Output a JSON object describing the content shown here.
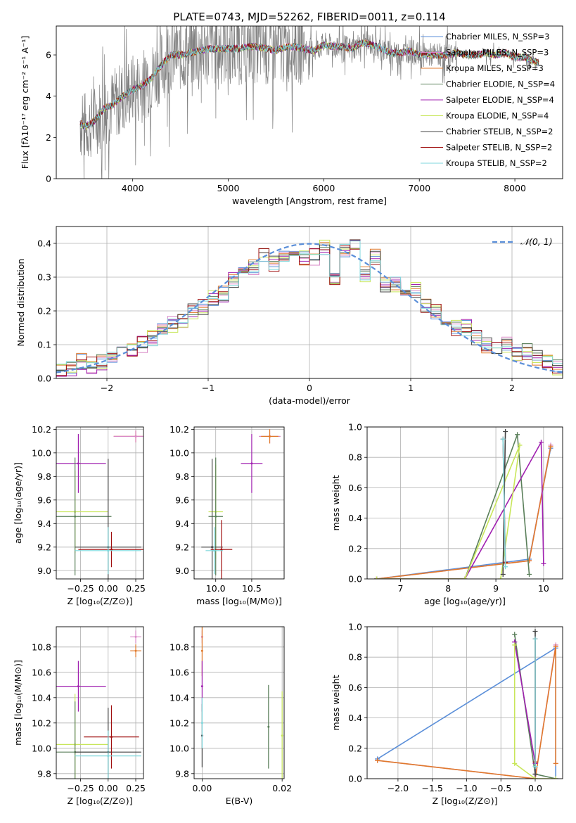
{
  "figure": {
    "title": "PLATE=0743, MJD=52262, FIBERID=0011, z=0.114",
    "colors": {
      "chabrier_miles": "#5b8fd9",
      "salpeter_miles": "#d98ac7",
      "kroupa_miles": "#e07a2c",
      "chabrier_elodie": "#5a7f5a",
      "salpeter_elodie": "#a020b0",
      "kroupa_elodie": "#c8e65a",
      "chabrier_stelib": "#444444",
      "salpeter_stelib": "#a01010",
      "kroupa_stelib": "#7fd7dc",
      "raw_spectrum": "#808080",
      "gaussian": "#5b8fd9"
    }
  },
  "chart_data": [
    {
      "id": "spectrum",
      "type": "line",
      "xlabel": "wavelength [Angstrom, rest frame]",
      "ylabel": "Flux [fλ10⁻¹⁷ erg cm⁻² s⁻¹ A⁻¹]",
      "xlim": [
        3200,
        8500
      ],
      "ylim": [
        0,
        7.4
      ],
      "xticks": [
        4000,
        5000,
        6000,
        7000,
        8000
      ],
      "yticks": [
        0,
        2,
        4,
        6
      ],
      "grid": false,
      "legend_position": "top-right",
      "x": [
        3450,
        3500,
        3600,
        3700,
        3800,
        3900,
        4000,
        4100,
        4200,
        4300,
        4400,
        4500,
        4600,
        4700,
        4800,
        4900,
        5000,
        5100,
        5200,
        5300,
        5400,
        5500,
        5600,
        5700,
        5800,
        5900,
        6000,
        6100,
        6200,
        6300,
        6400,
        6500,
        6600,
        6700,
        6800,
        6900,
        7000,
        7100,
        7200,
        7300,
        7400,
        7500,
        7600,
        7700,
        7800,
        7900,
        8000,
        8100,
        8200,
        8250
      ],
      "y": [
        2.7,
        2.5,
        2.8,
        3.4,
        3.6,
        4.0,
        4.3,
        4.5,
        4.9,
        5.5,
        6.0,
        6.0,
        6.1,
        6.2,
        6.3,
        6.3,
        6.3,
        6.3,
        6.4,
        6.4,
        6.3,
        6.2,
        6.4,
        6.4,
        6.3,
        6.2,
        6.5,
        6.4,
        6.4,
        6.3,
        6.6,
        6.5,
        6.3,
        6.1,
        6.1,
        6.2,
        6.0,
        6.0,
        6.0,
        6.0,
        6.1,
        6.0,
        6.0,
        6.1,
        6.0,
        6.1,
        5.9,
        5.9,
        5.7,
        5.6
      ],
      "series": [
        {
          "name": "Chabrier MILES, N_SSP=3",
          "color_key": "chabrier_miles"
        },
        {
          "name": "Salpeter MILES, N_SSP=3",
          "color_key": "salpeter_miles"
        },
        {
          "name": "Kroupa MILES, N_SSP=3",
          "color_key": "kroupa_miles"
        },
        {
          "name": "Chabrier ELODIE, N_SSP=4",
          "color_key": "chabrier_elodie"
        },
        {
          "name": "Salpeter ELODIE, N_SSP=4",
          "color_key": "salpeter_elodie"
        },
        {
          "name": "Kroupa ELODIE, N_SSP=4",
          "color_key": "kroupa_elodie"
        },
        {
          "name": "Chabrier STELIB, N_SSP=2",
          "color_key": "chabrier_stelib"
        },
        {
          "name": "Salpeter STELIB, N_SSP=2",
          "color_key": "salpeter_stelib"
        },
        {
          "name": "Kroupa STELIB, N_SSP=2",
          "color_key": "kroupa_stelib"
        }
      ]
    },
    {
      "id": "residuals",
      "type": "line",
      "xlabel": "(data-model)/error",
      "ylabel": "Normed distribution",
      "xlim": [
        -2.5,
        2.5
      ],
      "ylim": [
        0,
        0.45
      ],
      "xticks": [
        -2,
        -1,
        0,
        1,
        2
      ],
      "yticks": [
        0.0,
        0.1,
        0.2,
        0.3,
        0.4
      ],
      "grid": true,
      "legend_position": "top-right",
      "gaussian_label": "𝒩(0, 1)",
      "bin_edges": [
        -2.5,
        -2.4,
        -2.3,
        -2.2,
        -2.1,
        -2.0,
        -1.9,
        -1.8,
        -1.7,
        -1.6,
        -1.5,
        -1.4,
        -1.3,
        -1.2,
        -1.1,
        -1.0,
        -0.9,
        -0.8,
        -0.7,
        -0.6,
        -0.5,
        -0.4,
        -0.3,
        -0.2,
        -0.1,
        0.0,
        0.1,
        0.2,
        0.3,
        0.4,
        0.5,
        0.6,
        0.7,
        0.8,
        0.9,
        1.0,
        1.1,
        1.2,
        1.3,
        1.4,
        1.5,
        1.6,
        1.7,
        1.8,
        1.9,
        2.0,
        2.1,
        2.2,
        2.3,
        2.4,
        2.5
      ],
      "hist_values": [
        0.03,
        0.03,
        0.05,
        0.04,
        0.05,
        0.06,
        0.07,
        0.09,
        0.1,
        0.12,
        0.14,
        0.16,
        0.17,
        0.2,
        0.21,
        0.24,
        0.25,
        0.29,
        0.31,
        0.33,
        0.36,
        0.34,
        0.36,
        0.37,
        0.36,
        0.36,
        0.39,
        0.3,
        0.38,
        0.4,
        0.31,
        0.36,
        0.28,
        0.28,
        0.27,
        0.26,
        0.22,
        0.2,
        0.17,
        0.15,
        0.15,
        0.12,
        0.1,
        0.09,
        0.1,
        0.07,
        0.08,
        0.06,
        0.05,
        0.03
      ]
    },
    {
      "id": "age-vs-z",
      "type": "scatter",
      "xlabel": "Z [log₁₀(Z/Z⊙)]",
      "ylabel": "age  [log₁₀(age/yr)]",
      "xlim": [
        -0.47,
        0.32
      ],
      "ylim": [
        8.93,
        10.22
      ],
      "xticks": [
        -0.25,
        0.0,
        0.25
      ],
      "xtick_labels": [
        "−0.25",
        "0.00",
        "0.25"
      ],
      "yticks": [
        9.0,
        9.2,
        9.4,
        9.6,
        9.8,
        10.0,
        10.2
      ],
      "grid": true,
      "points": [
        {
          "x": 0.25,
          "y": 10.14,
          "xerr": 0.2,
          "yerr": 0.05,
          "color_key": "kroupa_miles"
        },
        {
          "x": 0.25,
          "y": 10.14,
          "xerr": 0.2,
          "yerr": 0.05,
          "color_key": "salpeter_miles"
        },
        {
          "x": -0.27,
          "y": 9.91,
          "xerr": 0.25,
          "yerr": 0.25,
          "color_key": "salpeter_elodie"
        },
        {
          "x": -0.3,
          "y": 9.5,
          "xerr": 0.3,
          "yerr": 0.35,
          "color_key": "kroupa_elodie"
        },
        {
          "x": -0.3,
          "y": 9.46,
          "xerr": 0.33,
          "yerr": 0.5,
          "color_key": "chabrier_elodie"
        },
        {
          "x": 0.0,
          "y": 9.2,
          "xerr": 0.3,
          "yerr": 0.75,
          "color_key": "chabrier_stelib"
        },
        {
          "x": 0.03,
          "y": 9.18,
          "xerr": 0.3,
          "yerr": 0.15,
          "color_key": "salpeter_stelib"
        },
        {
          "x": 0.0,
          "y": 9.17,
          "xerr": 0.3,
          "yerr": 0.2,
          "color_key": "kroupa_stelib"
        }
      ]
    },
    {
      "id": "age-vs-mass",
      "type": "scatter",
      "xlabel": "mass [log₁₀(M/M⊙)]",
      "ylabel": "",
      "xlim": [
        9.7,
        10.95
      ],
      "ylim": [
        8.93,
        10.22
      ],
      "xticks": [
        10.0,
        10.5
      ],
      "xtick_labels": [
        "10.0",
        "10.5"
      ],
      "yticks": [
        9.0,
        9.2,
        9.4,
        9.6,
        9.8,
        10.0,
        10.2
      ],
      "grid": true,
      "points": [
        {
          "x": 10.75,
          "y": 10.14,
          "xerr": 0.15,
          "yerr": 0.06,
          "color_key": "salpeter_miles"
        },
        {
          "x": 10.75,
          "y": 10.14,
          "xerr": 0.12,
          "yerr": 0.06,
          "color_key": "kroupa_miles"
        },
        {
          "x": 10.5,
          "y": 9.91,
          "xerr": 0.15,
          "yerr": 0.25,
          "color_key": "salpeter_elodie"
        },
        {
          "x": 10.0,
          "y": 9.5,
          "xerr": 0.1,
          "yerr": 0.4,
          "color_key": "kroupa_elodie"
        },
        {
          "x": 10.0,
          "y": 9.46,
          "xerr": 0.1,
          "yerr": 0.5,
          "color_key": "chabrier_elodie"
        },
        {
          "x": 9.95,
          "y": 9.2,
          "xerr": 0.15,
          "yerr": 0.75,
          "color_key": "chabrier_stelib"
        },
        {
          "x": 10.08,
          "y": 9.18,
          "xerr": 0.15,
          "yerr": 0.25,
          "color_key": "salpeter_stelib"
        },
        {
          "x": 9.98,
          "y": 9.17,
          "xerr": 0.12,
          "yerr": 0.2,
          "color_key": "kroupa_stelib"
        }
      ]
    },
    {
      "id": "weight-vs-age",
      "type": "line",
      "xlabel": "age  [log₁₀(age/yr)]",
      "ylabel": "mass weight",
      "xlim": [
        6.3,
        10.4
      ],
      "ylim": [
        0,
        1.0
      ],
      "xticks": [
        7,
        8,
        9,
        10
      ],
      "yticks": [
        0.0,
        0.2,
        0.4,
        0.6,
        0.8,
        1.0
      ],
      "grid": true,
      "series": [
        {
          "color_key": "chabrier_miles",
          "x": [
            6.5,
            9.7,
            10.15
          ],
          "y": [
            0.0,
            0.13,
            0.86
          ]
        },
        {
          "color_key": "salpeter_miles",
          "x": [
            6.5,
            9.7,
            10.15
          ],
          "y": [
            0.0,
            0.12,
            0.88
          ]
        },
        {
          "color_key": "kroupa_miles",
          "x": [
            6.5,
            9.7,
            10.15
          ],
          "y": [
            0.0,
            0.12,
            0.87
          ]
        },
        {
          "color_key": "chabrier_elodie",
          "x": [
            6.5,
            8.35,
            9.45,
            9.7
          ],
          "y": [
            0.0,
            0.0,
            0.95,
            0.03
          ]
        },
        {
          "color_key": "salpeter_elodie",
          "x": [
            6.5,
            8.35,
            9.95,
            10.0
          ],
          "y": [
            0.0,
            0.0,
            0.9,
            0.1
          ]
        },
        {
          "color_key": "kroupa_elodie",
          "x": [
            6.5,
            8.35,
            9.5,
            9.1
          ],
          "y": [
            0.0,
            0.0,
            0.88,
            0.0
          ]
        },
        {
          "color_key": "chabrier_stelib",
          "x": [
            9.2,
            9.15
          ],
          "y": [
            0.97,
            0.03
          ]
        },
        {
          "color_key": "salpeter_stelib",
          "x": [
            9.2,
            9.15
          ],
          "y": [
            0.11,
            0.92
          ]
        },
        {
          "color_key": "kroupa_stelib",
          "x": [
            9.15,
            9.2
          ],
          "y": [
            0.92,
            0.08
          ]
        }
      ]
    },
    {
      "id": "mass-vs-z",
      "type": "scatter",
      "xlabel": "Z [log₁₀(Z/Z⊙)]",
      "ylabel": "mass [log₁₀(M/M⊙)]",
      "xlim": [
        -0.47,
        0.32
      ],
      "ylim": [
        9.76,
        10.96
      ],
      "xticks": [
        -0.25,
        0.0,
        0.25
      ],
      "xtick_labels": [
        "−0.25",
        "0.00",
        "0.25"
      ],
      "yticks": [
        9.8,
        10.0,
        10.2,
        10.4,
        10.6,
        10.8
      ],
      "grid": true,
      "points": [
        {
          "x": 0.25,
          "y": 10.88,
          "xerr": 0.05,
          "yerr": 0.05,
          "color_key": "salpeter_miles"
        },
        {
          "x": 0.25,
          "y": 10.77,
          "xerr": 0.05,
          "yerr": 0.05,
          "color_key": "kroupa_miles"
        },
        {
          "x": -0.27,
          "y": 10.49,
          "xerr": 0.25,
          "yerr": 0.2,
          "color_key": "salpeter_elodie"
        },
        {
          "x": -0.3,
          "y": 10.03,
          "xerr": 0.3,
          "yerr": 0.4,
          "color_key": "kroupa_elodie"
        },
        {
          "x": -0.3,
          "y": 9.97,
          "xerr": 0.33,
          "yerr": 0.4,
          "color_key": "chabrier_elodie"
        },
        {
          "x": 0.0,
          "y": 9.97,
          "xerr": 0.3,
          "yerr": 0.35,
          "color_key": "chabrier_stelib"
        },
        {
          "x": 0.03,
          "y": 10.09,
          "xerr": 0.25,
          "yerr": 0.25,
          "color_key": "salpeter_stelib"
        },
        {
          "x": 0.0,
          "y": 9.94,
          "xerr": 0.3,
          "yerr": 0.2,
          "color_key": "kroupa_stelib"
        }
      ]
    },
    {
      "id": "mass-vs-ebv",
      "type": "scatter",
      "xlabel": "E(B-V)",
      "ylabel": "",
      "xlim": [
        -0.002,
        0.0205
      ],
      "ylim": [
        9.76,
        10.96
      ],
      "xticks": [
        0.0,
        0.02
      ],
      "xtick_labels": [
        "0.00",
        "0.02"
      ],
      "yticks": [
        9.8,
        10.0,
        10.2,
        10.4,
        10.6,
        10.8
      ],
      "grid": true,
      "points": [
        {
          "x": 0.0,
          "y": 10.88,
          "xerr": 0,
          "yerr": 0.05,
          "color_key": "salpeter_miles"
        },
        {
          "x": 0.0,
          "y": 10.77,
          "xerr": 0,
          "yerr": 0.2,
          "color_key": "kroupa_miles"
        },
        {
          "x": 0.0,
          "y": 10.49,
          "xerr": 0,
          "yerr": 0.2,
          "color_key": "salpeter_elodie"
        },
        {
          "x": 0.0,
          "y": 10.1,
          "xerr": 0,
          "yerr": 0.25,
          "color_key": "chabrier_stelib"
        },
        {
          "x": 0.0,
          "y": 10.2,
          "xerr": 0,
          "yerr": 0.2,
          "color_key": "kroupa_stelib"
        },
        {
          "x": 0.0166,
          "y": 10.17,
          "xerr": 0,
          "yerr": 0.33,
          "color_key": "chabrier_elodie"
        },
        {
          "x": 0.02,
          "y": 10.1,
          "xerr": 0,
          "yerr": 0.35,
          "color_key": "kroupa_elodie"
        }
      ]
    },
    {
      "id": "weight-vs-z",
      "type": "line",
      "xlabel": "Z [log₁₀(Z/Z⊙)]",
      "ylabel": "mass weight",
      "xlim": [
        -2.45,
        0.4
      ],
      "ylim": [
        0,
        1.0
      ],
      "xticks": [
        -2.0,
        -1.5,
        -1.0,
        -0.5,
        0.0
      ],
      "xtick_labels": [
        "−2.0",
        "−1.5",
        "−1.0",
        "−0.5",
        "0.0"
      ],
      "yticks": [
        0.0,
        0.2,
        0.4,
        0.6,
        0.8,
        1.0
      ],
      "grid": true,
      "series": [
        {
          "color_key": "chabrier_miles",
          "x": [
            -2.3,
            0.3,
            0.3
          ],
          "y": [
            0.13,
            0.86,
            0.0
          ]
        },
        {
          "color_key": "salpeter_miles",
          "x": [
            -2.3,
            0.0,
            0.3,
            0.3
          ],
          "y": [
            0.12,
            0.0,
            0.88,
            0.1
          ]
        },
        {
          "color_key": "kroupa_miles",
          "x": [
            -2.3,
            0.0,
            0.3,
            0.3
          ],
          "y": [
            0.12,
            0.0,
            0.87,
            0.1
          ]
        },
        {
          "color_key": "chabrier_elodie",
          "x": [
            -0.3,
            0.0,
            0.3
          ],
          "y": [
            0.95,
            0.03,
            0.0
          ]
        },
        {
          "color_key": "salpeter_elodie",
          "x": [
            -0.3,
            -0.3,
            0.0,
            0.0
          ],
          "y": [
            0.9,
            0.9,
            0.1,
            0.0
          ]
        },
        {
          "color_key": "kroupa_elodie",
          "x": [
            -0.3,
            -0.3,
            0.0,
            0.3
          ],
          "y": [
            0.88,
            0.1,
            0.0,
            0.0
          ]
        },
        {
          "color_key": "chabrier_stelib",
          "x": [
            0.0,
            0.0
          ],
          "y": [
            0.97,
            0.03
          ]
        },
        {
          "color_key": "salpeter_stelib",
          "x": [
            0.0,
            0.0
          ],
          "y": [
            0.11,
            0.92
          ]
        },
        {
          "color_key": "kroupa_stelib",
          "x": [
            0.0,
            0.0
          ],
          "y": [
            0.92,
            0.08
          ]
        }
      ]
    }
  ]
}
